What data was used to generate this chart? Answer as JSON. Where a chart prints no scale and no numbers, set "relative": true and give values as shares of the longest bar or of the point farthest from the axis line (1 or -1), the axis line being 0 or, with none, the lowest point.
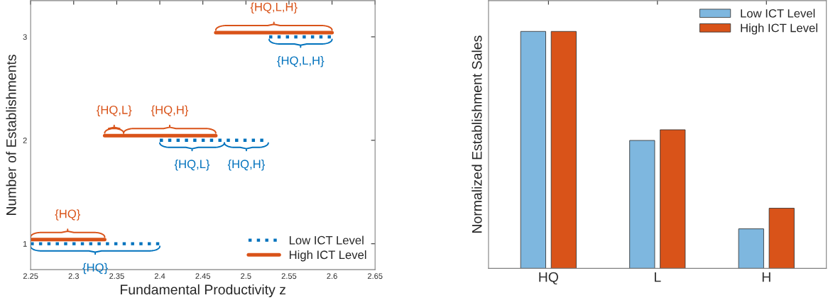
{
  "chart_data": [
    {
      "type": "line",
      "xlabel": "Fundamental Productivity z",
      "ylabel": "Number of Establishments",
      "series": [
        {
          "name": "Low ICT Level",
          "color": "#0072bd",
          "line_style": "dotted",
          "x": [
            2.25,
            2.4
          ],
          "values": [
            1,
            1
          ]
        },
        {
          "color": "#0072bd",
          "line_style": "dotted",
          "x": [
            2.4,
            2.475,
            2.526
          ],
          "values": [
            2,
            2,
            2
          ]
        },
        {
          "color": "#0072bd",
          "line_style": "dotted",
          "x": [
            2.527,
            2.6
          ],
          "values": [
            3,
            3
          ]
        },
        {
          "name": "High ICT Level",
          "color": "#d95319",
          "line_style": "solid",
          "x": [
            2.25,
            2.336
          ],
          "values": [
            1.04,
            1.04
          ]
        },
        {
          "color": "#d95319",
          "line_style": "solid",
          "x": [
            2.336,
            2.358,
            2.465
          ],
          "values": [
            2.045,
            2.045,
            2.045
          ]
        },
        {
          "color": "#d95319",
          "line_style": "solid",
          "x": [
            2.465,
            2.6
          ],
          "values": [
            3.04,
            3.04
          ]
        }
      ],
      "annotations": [
        "{HQ}",
        "{HQ,L}",
        "{HQ,H}",
        "{HQ,L,H}",
        "{HQ}",
        "{HQ,L}",
        "{HQ,H}",
        "{HQ,L,H}"
      ],
      "xlim": [
        2.25,
        2.65
      ],
      "xticks": [
        2.25,
        2.3,
        2.35,
        2.4,
        2.45,
        2.5,
        2.55,
        2.6,
        2.65
      ],
      "ylim": [
        0.75,
        3.35
      ],
      "yticks": [
        1,
        2,
        3
      ],
      "legend": "bottom right",
      "grid": false
    },
    {
      "type": "bar",
      "ylabel": "Normalized Establishment Sales",
      "categories": [
        "HQ",
        "L",
        "H"
      ],
      "relative": true,
      "series": [
        {
          "name": "Low ICT Level",
          "color": "#7eb7df",
          "values": [
            1,
            0.54,
            0.167
          ]
        },
        {
          "name": "High ICT Level",
          "color": "#d95319",
          "values": [
            1,
            0.585,
            0.254
          ]
        }
      ],
      "legend": "top right",
      "grid": false
    }
  ]
}
